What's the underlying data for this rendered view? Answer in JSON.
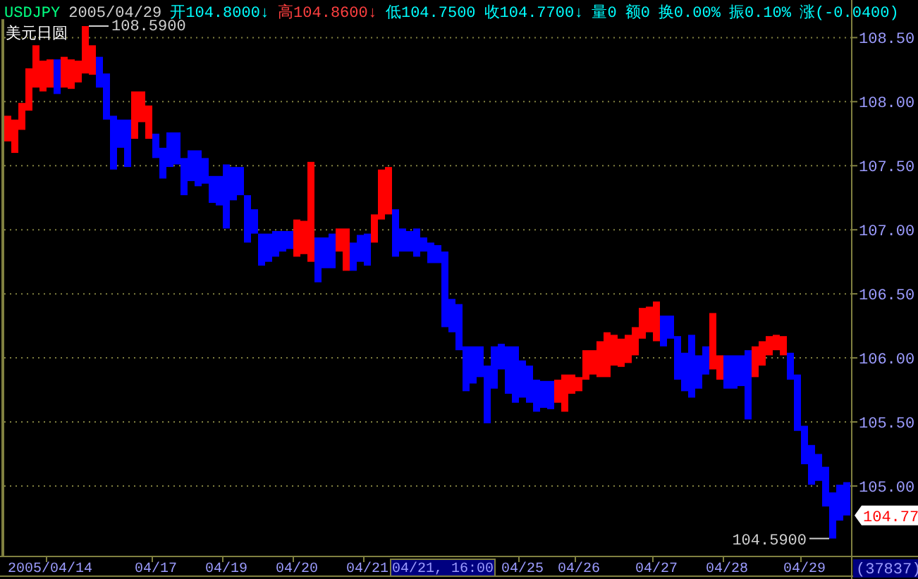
{
  "chart_data": {
    "type": "bar",
    "title": "美元日圆",
    "categories": [
      null,
      null,
      null,
      null,
      null,
      null,
      "2005/04/14",
      null,
      null,
      null,
      null,
      null,
      null,
      null,
      null,
      null,
      null,
      null,
      null,
      null,
      null,
      "04/17",
      null,
      null,
      null,
      null,
      null,
      null,
      null,
      null,
      null,
      "04/19",
      null,
      null,
      null,
      null,
      null,
      null,
      null,
      null,
      null,
      "04/20",
      null,
      null,
      null,
      null,
      null,
      null,
      null,
      null,
      null,
      "04/21",
      null,
      null,
      null,
      null,
      null,
      null,
      null,
      null,
      null,
      null,
      null,
      null,
      null,
      null,
      null,
      null,
      null,
      null,
      null,
      null,
      null,
      "04/25",
      null,
      null,
      null,
      null,
      null,
      null,
      null,
      "04/26",
      null,
      null,
      null,
      null,
      null,
      null,
      null,
      null,
      null,
      null,
      "04/27",
      null,
      null,
      null,
      null,
      null,
      null,
      null,
      null,
      null,
      "04/28",
      null,
      null,
      null,
      null,
      null,
      null,
      null,
      null,
      null,
      null,
      "04/29",
      null,
      null,
      null,
      null,
      null,
      null
    ],
    "base": [
      107.69,
      107.6,
      107.78,
      107.93,
      108.11,
      108.08,
      108.11,
      108.06,
      108.11,
      108.1,
      108.15,
      108.22,
      108.21,
      108.11,
      107.86,
      107.47,
      107.64,
      107.49,
      107.71,
      107.84,
      107.71,
      107.56,
      107.4,
      107.49,
      107.51,
      107.27,
      107.38,
      107.34,
      107.36,
      107.21,
      107.19,
      107.01,
      107.23,
      107.27,
      106.9,
      106.97,
      106.72,
      106.75,
      106.79,
      106.83,
      106.85,
      106.79,
      106.81,
      106.75,
      106.59,
      106.7,
      106.7,
      106.83,
      106.68,
      106.68,
      106.75,
      106.72,
      106.9,
      107.08,
      107.12,
      106.79,
      106.83,
      106.83,
      106.79,
      106.83,
      106.74,
      106.74,
      106.24,
      106.2,
      106.06,
      105.74,
      105.8,
      105.85,
      105.49,
      105.76,
      105.91,
      105.72,
      105.65,
      105.69,
      105.65,
      105.58,
      105.61,
      105.6,
      105.65,
      105.58,
      105.72,
      105.74,
      105.83,
      105.87,
      105.85,
      105.85,
      105.94,
      105.93,
      105.96,
      106.02,
      106.15,
      106.2,
      106.13,
      106.09,
      106.15,
      105.83,
      105.74,
      105.69,
      105.76,
      105.87,
      105.91,
      105.83,
      105.76,
      105.76,
      105.78,
      105.52,
      105.85,
      105.94,
      106.02,
      106.06,
      106.02,
      105.83,
      105.43,
      105.17,
      105.01,
      105.04,
      104.84,
      104.59,
      104.73,
      104.77
    ],
    "values": [
      0.2,
      0.26,
      0.21,
      0.33,
      0.33,
      0.24,
      0.22,
      0.27,
      0.24,
      0.23,
      0.17,
      0.37,
      0.23,
      0.24,
      0.36,
      0.42,
      0.22,
      0.37,
      0.37,
      0.24,
      0.26,
      0.19,
      0.24,
      0.27,
      0.25,
      0.29,
      0.24,
      0.28,
      0.2,
      0.21,
      0.23,
      0.5,
      0.26,
      0.22,
      0.37,
      0.19,
      0.25,
      0.22,
      0.2,
      0.16,
      0.14,
      0.29,
      0.26,
      0.78,
      0.35,
      0.24,
      0.27,
      0.18,
      0.33,
      0.22,
      0.21,
      0.25,
      0.22,
      0.39,
      0.37,
      0.37,
      0.18,
      0.16,
      0.22,
      0.11,
      0.16,
      0.14,
      0.59,
      0.26,
      0.36,
      0.35,
      0.29,
      0.24,
      0.45,
      0.33,
      0.2,
      0.37,
      0.44,
      0.29,
      0.29,
      0.25,
      0.21,
      0.22,
      0.18,
      0.29,
      0.15,
      0.11,
      0.23,
      0.19,
      0.28,
      0.35,
      0.24,
      0.22,
      0.22,
      0.22,
      0.24,
      0.2,
      0.31,
      0.24,
      0.18,
      0.34,
      0.3,
      0.49,
      0.26,
      0.22,
      0.44,
      0.19,
      0.26,
      0.26,
      0.24,
      0.54,
      0.24,
      0.19,
      0.15,
      0.12,
      0.15,
      0.21,
      0.44,
      0.3,
      0.31,
      0.21,
      0.31,
      0.36,
      0.28,
      0.26
    ],
    "colors": [
      "#ff0000",
      "#ff0000",
      "#ff0000",
      "#ff0000",
      "#ff0000",
      "#ff0000",
      "#ff0000",
      "#0000ff",
      "#ff0000",
      "#ff0000",
      "#ff0000",
      "#ff0000",
      "#ff0000",
      "#0000ff",
      "#0000ff",
      "#0000ff",
      "#0000ff",
      "#0000ff",
      "#ff0000",
      "#ff0000",
      "#ff0000",
      "#0000ff",
      "#0000ff",
      "#0000ff",
      "#0000ff",
      "#0000ff",
      "#0000ff",
      "#0000ff",
      "#0000ff",
      "#0000ff",
      "#0000ff",
      "#0000ff",
      "#0000ff",
      "#0000ff",
      "#0000ff",
      "#0000ff",
      "#0000ff",
      "#0000ff",
      "#0000ff",
      "#0000ff",
      "#0000ff",
      "#ff0000",
      "#ff0000",
      "#ff0000",
      "#0000ff",
      "#0000ff",
      "#0000ff",
      "#ff0000",
      "#ff0000",
      "#0000ff",
      "#0000ff",
      "#0000ff",
      "#ff0000",
      "#ff0000",
      "#ff0000",
      "#0000ff",
      "#0000ff",
      "#0000ff",
      "#0000ff",
      "#0000ff",
      "#0000ff",
      "#0000ff",
      "#0000ff",
      "#0000ff",
      "#0000ff",
      "#0000ff",
      "#0000ff",
      "#0000ff",
      "#0000ff",
      "#0000ff",
      "#0000ff",
      "#0000ff",
      "#0000ff",
      "#0000ff",
      "#0000ff",
      "#0000ff",
      "#0000ff",
      "#0000ff",
      "#ff0000",
      "#ff0000",
      "#ff0000",
      "#ff0000",
      "#ff0000",
      "#ff0000",
      "#ff0000",
      "#ff0000",
      "#ff0000",
      "#ff0000",
      "#ff0000",
      "#ff0000",
      "#ff0000",
      "#ff0000",
      "#ff0000",
      "#0000ff",
      "#0000ff",
      "#0000ff",
      "#0000ff",
      "#0000ff",
      "#0000ff",
      "#0000ff",
      "#ff0000",
      "#ff0000",
      "#0000ff",
      "#0000ff",
      "#0000ff",
      "#0000ff",
      "#ff0000",
      "#ff0000",
      "#ff0000",
      "#ff0000",
      "#ff0000",
      "#0000ff",
      "#0000ff",
      "#0000ff",
      "#0000ff",
      "#0000ff",
      "#0000ff",
      "#0000ff",
      "#0000ff",
      "#0000ff"
    ],
    "ylim": [
      104.45,
      108.6
    ],
    "yticks": [
      {
        "value": 105,
        "label": "105.00"
      },
      {
        "value": 105.5,
        "label": "105.50"
      },
      {
        "value": 106,
        "label": "106.00"
      },
      {
        "value": 106.5,
        "label": "106.50"
      },
      {
        "value": 107,
        "label": "107.00"
      },
      {
        "value": 107.5,
        "label": "107.50"
      },
      {
        "value": 108,
        "label": "108.00"
      },
      {
        "value": 108.5,
        "label": "108.50"
      }
    ],
    "grid": "y",
    "annotations": [
      "USDJPY",
      "2005/04/29",
      "开104.8000↓",
      "高104.8600↓",
      "低104.7500",
      "收104.7700↓",
      "量0",
      "额0",
      "换0.00%",
      "振0.10%",
      "涨(-0.0400)",
      "108.5900",
      "104.5900",
      "104.77",
      "04/21, 16:00",
      "(37837)"
    ]
  }
}
